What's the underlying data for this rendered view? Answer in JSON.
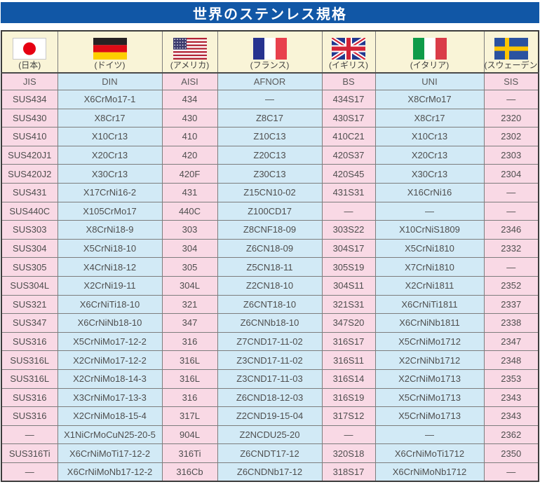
{
  "title": "世界のステンレス規格",
  "colors": {
    "title_bg": "#1157a6",
    "pink": "#f9d9e5",
    "blue": "#d2eaf6",
    "cream": "#f9f4d7",
    "grid": "#7d7d7d",
    "outer_border": "#3c3c3c",
    "text": "#4e4e4e"
  },
  "flags": [
    {
      "icon": "japan-flag-icon",
      "code": "jp",
      "label": "(日本)"
    },
    {
      "icon": "germany-flag-icon",
      "code": "de",
      "label": "(ドイツ)"
    },
    {
      "icon": "usa-flag-icon",
      "code": "us",
      "label": "(アメリカ)"
    },
    {
      "icon": "france-flag-icon",
      "code": "fr",
      "label": "(フランス)"
    },
    {
      "icon": "uk-flag-icon",
      "code": "gb",
      "label": "(イギリス)"
    },
    {
      "icon": "italy-flag-icon",
      "code": "it",
      "label": "(イタリア)"
    },
    {
      "icon": "sweden-flag-icon",
      "code": "se",
      "label": "(スウェーデン)"
    }
  ],
  "columns": [
    "JIS",
    "DIN",
    "AISI",
    "AFNOR",
    "BS",
    "UNI",
    "SIS"
  ],
  "rows": [
    [
      "SUS434",
      "X6CrMo17-1",
      "434",
      "—",
      "434S17",
      "X8CrMo17",
      "—"
    ],
    [
      "SUS430",
      "X8Cr17",
      "430",
      "Z8C17",
      "430S17",
      "X8Cr17",
      "2320"
    ],
    [
      "SUS410",
      "X10Cr13",
      "410",
      "Z10C13",
      "410C21",
      "X10Cr13",
      "2302"
    ],
    [
      "SUS420J1",
      "X20Cr13",
      "420",
      "Z20C13",
      "420S37",
      "X20Cr13",
      "2303"
    ],
    [
      "SUS420J2",
      "X30Cr13",
      "420F",
      "Z30C13",
      "420S45",
      "X30Cr13",
      "2304"
    ],
    [
      "SUS431",
      "X17CrNi16-2",
      "431",
      "Z15CN10-02",
      "431S31",
      "X16CrNi16",
      "—"
    ],
    [
      "SUS440C",
      "X105CrMo17",
      "440C",
      "Z100CD17",
      "—",
      "—",
      "—"
    ],
    [
      "SUS303",
      "X8CrNi18-9",
      "303",
      "Z8CNF18-09",
      "303S22",
      "X10CrNiS1809",
      "2346"
    ],
    [
      "SUS304",
      "X5CrNi18-10",
      "304",
      "Z6CN18-09",
      "304S17",
      "X5CrNi1810",
      "2332"
    ],
    [
      "SUS305",
      "X4CrNi18-12",
      "305",
      "Z5CN18-11",
      "305S19",
      "X7CrNi1810",
      "—"
    ],
    [
      "SUS304L",
      "X2CrNi19-11",
      "304L",
      "Z2CN18-10",
      "304S11",
      "X2CrNi1811",
      "2352"
    ],
    [
      "SUS321",
      "X6CrNiTi18-10",
      "321",
      "Z6CNT18-10",
      "321S31",
      "X6CrNiTi1811",
      "2337"
    ],
    [
      "SUS347",
      "X6CrNiNb18-10",
      "347",
      "Z6CNNb18-10",
      "347S20",
      "X6CrNiNb1811",
      "2338"
    ],
    [
      "SUS316",
      "X5CrNiMo17-12-2",
      "316",
      "Z7CND17-11-02",
      "316S17",
      "X5CrNiMo1712",
      "2347"
    ],
    [
      "SUS316L",
      "X2CrNiMo17-12-2",
      "316L",
      "Z3CND17-11-02",
      "316S11",
      "X2CrNiNb1712",
      "2348"
    ],
    [
      "SUS316L",
      "X2CrNiMo18-14-3",
      "316L",
      "Z3CND17-11-03",
      "316S14",
      "X2CrNiMo1713",
      "2353"
    ],
    [
      "SUS316",
      "X3CrNiMo17-13-3",
      "316",
      "Z6CND18-12-03",
      "316S19",
      "X5CrNiMo1713",
      "2343"
    ],
    [
      "SUS316",
      "X2CrNiMo18-15-4",
      "317L",
      "Z2CND19-15-04",
      "317S12",
      "X5CrNiMo1713",
      "2343"
    ],
    [
      "—",
      "X1NiCrMoCuN25-20-5",
      "904L",
      "Z2NCDU25-20",
      "—",
      "—",
      "2362"
    ],
    [
      "SUS316Ti",
      "X6CrNiMoTi17-12-2",
      "316Ti",
      "Z6CNDT17-12",
      "320S18",
      "X6CrNiMoTi1712",
      "2350"
    ],
    [
      "—",
      "X6CrNiMoNb17-12-2",
      "316Cb",
      "Z6CNDNb17-12",
      "318S17",
      "X6CrNiMoNb1712",
      "—"
    ]
  ]
}
